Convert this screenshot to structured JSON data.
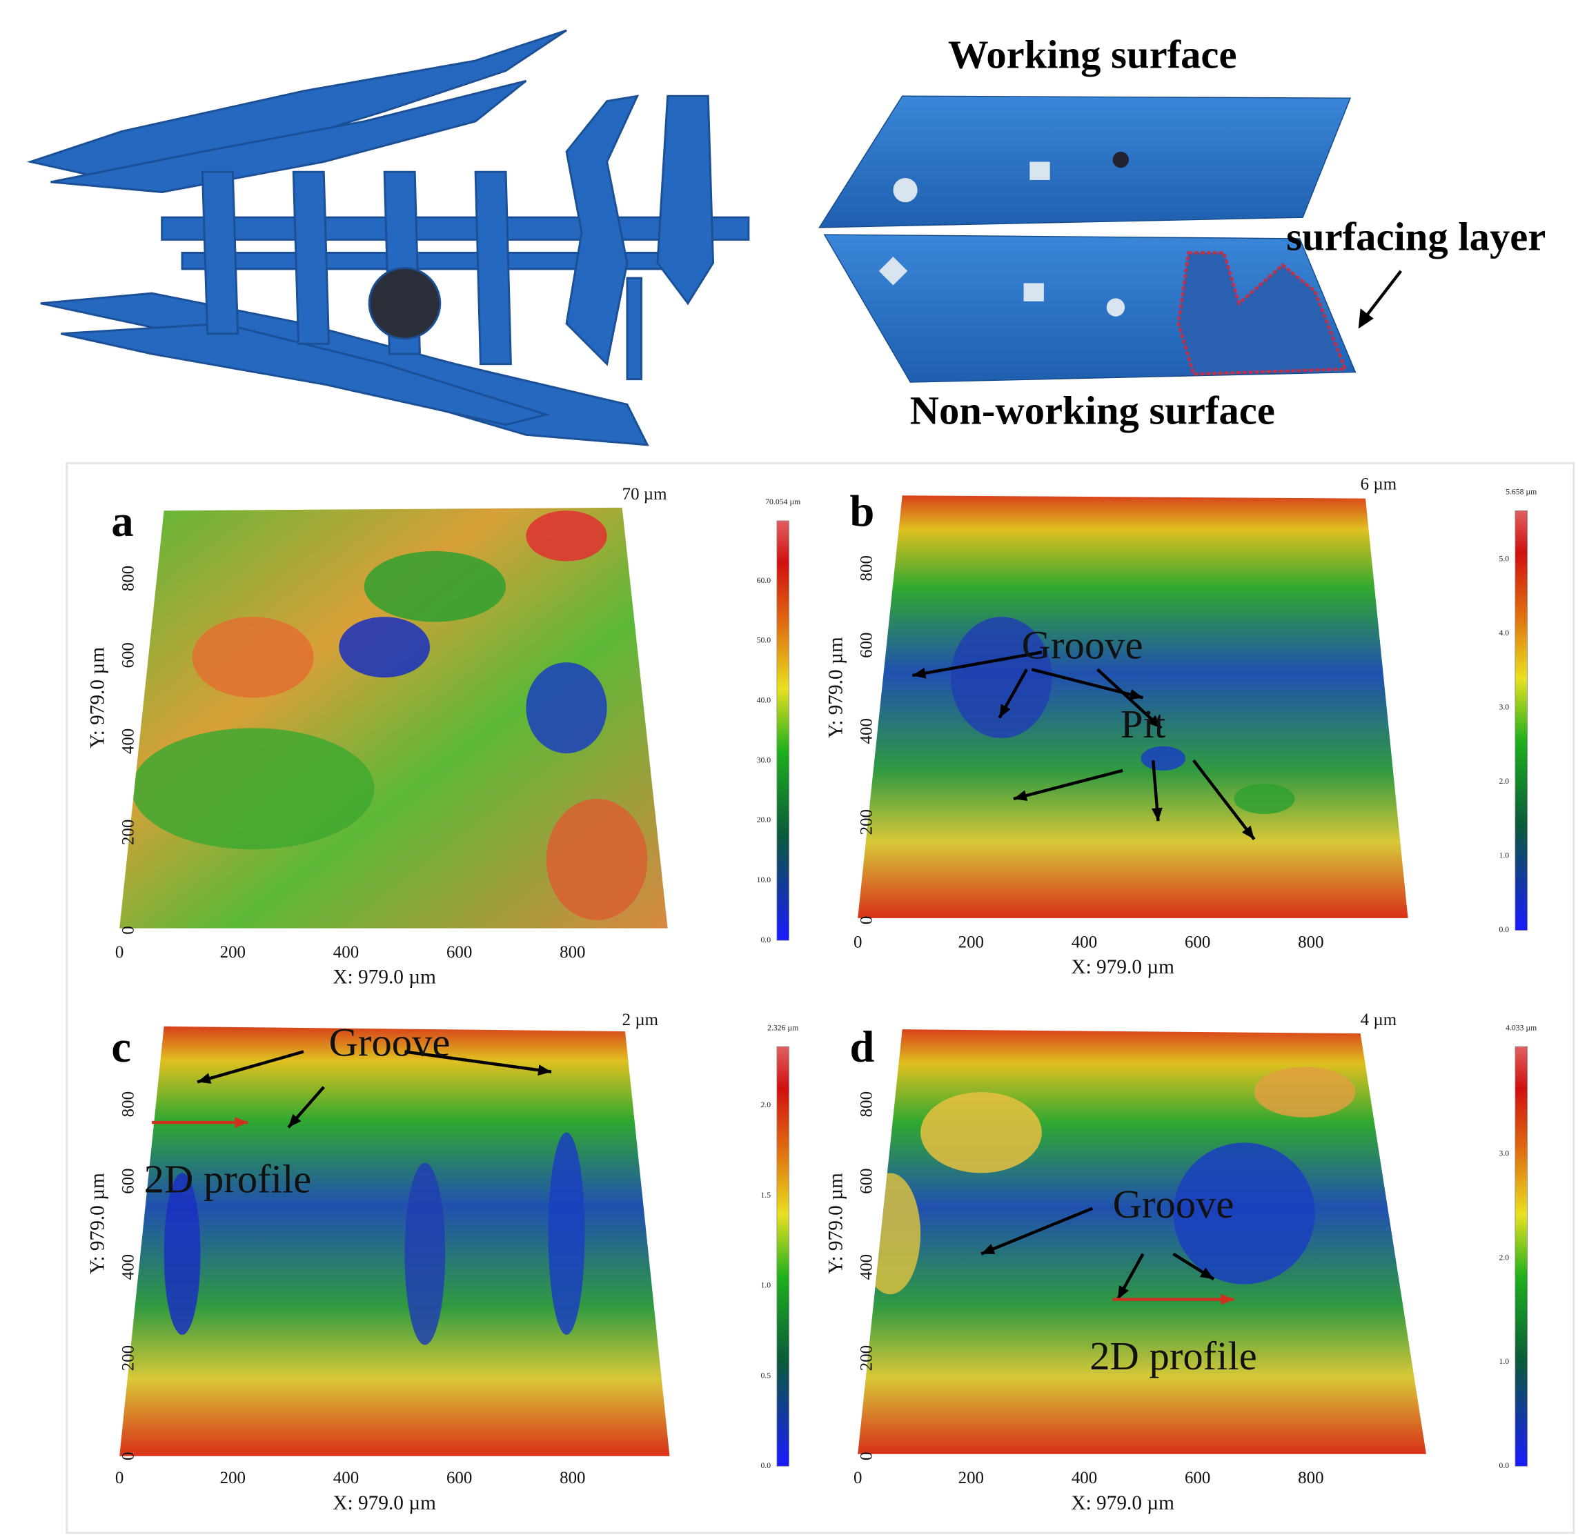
{
  "header": {
    "working_label": "Working surface",
    "non_working_label": "Non-working surface",
    "surfacing_label": "surfacing layer"
  },
  "panels": [
    {
      "letter": "a",
      "z_max_label": "70 µm",
      "x_title": "X: 979.0 µm",
      "y_title": "Y: 979.0 µm",
      "x_ticks": [
        "0",
        "200",
        "400",
        "600",
        "800"
      ],
      "y_ticks": [
        "0",
        "200",
        "400",
        "600",
        "800"
      ],
      "colorbar_max": "70.054 µm",
      "colorbar_ticks": [
        "0.0",
        "10.0",
        "20.0",
        "30.0",
        "40.0",
        "50.0",
        "60.0"
      ],
      "annotations": []
    },
    {
      "letter": "b",
      "z_max_label": "6 µm",
      "x_title": "X: 979.0 µm",
      "y_title": "Y: 979.0 µm",
      "x_ticks": [
        "0",
        "200",
        "400",
        "600",
        "800"
      ],
      "y_ticks": [
        "0",
        "200",
        "400",
        "600",
        "800"
      ],
      "colorbar_max": "5.658 µm",
      "colorbar_ticks": [
        "0.0",
        "1.0",
        "2.0",
        "3.0",
        "4.0",
        "5.0"
      ],
      "annotations": [
        "Groove",
        "Pit"
      ]
    },
    {
      "letter": "c",
      "z_max_label": "2 µm",
      "x_title": "X: 979.0 µm",
      "y_title": "Y: 979.0 µm",
      "x_ticks": [
        "0",
        "200",
        "400",
        "600",
        "800"
      ],
      "y_ticks": [
        "0",
        "200",
        "400",
        "600",
        "800"
      ],
      "colorbar_max": "2.326 µm",
      "colorbar_ticks": [
        "0.0",
        "0.5",
        "1.0",
        "1.5",
        "2.0"
      ],
      "annotations": [
        "Groove",
        "2D profile"
      ]
    },
    {
      "letter": "d",
      "z_max_label": "4 µm",
      "x_title": "X: 979.0 µm",
      "y_title": "Y: 979.0 µm",
      "x_ticks": [
        "0",
        "200",
        "400",
        "600",
        "800"
      ],
      "y_ticks": [
        "0",
        "200",
        "400",
        "600",
        "800"
      ],
      "colorbar_max": "4.033 µm",
      "colorbar_ticks": [
        "0.0",
        "1.0",
        "2.0",
        "3.0"
      ],
      "annotations": [
        "Groove",
        "2D profile"
      ]
    }
  ]
}
